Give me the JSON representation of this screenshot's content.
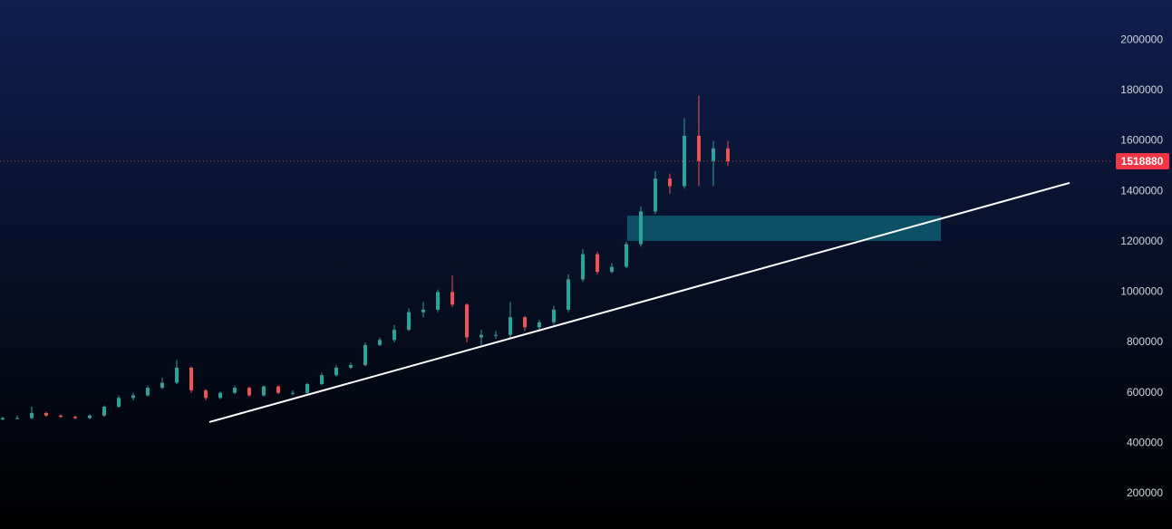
{
  "chart_data": {
    "type": "candlestick",
    "up_color": "#26a69a",
    "down_color": "#ef5350",
    "open": [
      495000,
      500000,
      500000,
      520000,
      510000,
      505000,
      500000,
      510000,
      545000,
      580000,
      590000,
      620000,
      640000,
      700000,
      610000,
      580000,
      600000,
      620000,
      590000,
      625000,
      600000,
      600000,
      635000,
      670000,
      700000,
      710000,
      790000,
      810000,
      850000,
      920000,
      930000,
      1000000,
      950000,
      820000,
      830000,
      830000,
      900000,
      860000,
      880000,
      930000,
      1050000,
      1150000,
      1080000,
      1100000,
      1190000,
      1320000,
      1450000,
      1420000,
      1620000,
      1520000,
      1570000
    ],
    "high": [
      505000,
      510000,
      545000,
      525000,
      515000,
      510000,
      515000,
      550000,
      590000,
      600000,
      630000,
      660000,
      730000,
      705000,
      615000,
      605000,
      630000,
      625000,
      630000,
      630000,
      610000,
      640000,
      680000,
      710000,
      720000,
      800000,
      820000,
      870000,
      935000,
      960000,
      1010000,
      1065000,
      955000,
      850000,
      845000,
      960000,
      905000,
      890000,
      945000,
      1070000,
      1170000,
      1160000,
      1115000,
      1200000,
      1340000,
      1480000,
      1470000,
      1690000,
      1780000,
      1600000,
      1600000
    ],
    "low": [
      490000,
      495000,
      495000,
      505000,
      500000,
      495000,
      495000,
      505000,
      540000,
      570000,
      585000,
      615000,
      635000,
      600000,
      570000,
      575000,
      595000,
      585000,
      585000,
      595000,
      590000,
      595000,
      630000,
      665000,
      695000,
      705000,
      785000,
      800000,
      845000,
      900000,
      920000,
      940000,
      800000,
      790000,
      815000,
      820000,
      845000,
      850000,
      870000,
      920000,
      1040000,
      1070000,
      1075000,
      1095000,
      1180000,
      1310000,
      1390000,
      1410000,
      1420000,
      1420000,
      1500000
    ],
    "close": [
      500000,
      500000,
      520000,
      510000,
      505000,
      500000,
      510000,
      545000,
      580000,
      590000,
      620000,
      640000,
      700000,
      610000,
      580000,
      600000,
      620000,
      590000,
      625000,
      600000,
      600000,
      635000,
      670000,
      700000,
      710000,
      790000,
      810000,
      850000,
      920000,
      930000,
      1000000,
      950000,
      820000,
      830000,
      830000,
      900000,
      860000,
      880000,
      930000,
      1050000,
      1150000,
      1080000,
      1100000,
      1190000,
      1320000,
      1450000,
      1420000,
      1620000,
      1520000,
      1570000,
      1518880
    ],
    "ylim": [
      59800,
      2158700
    ],
    "yticks": [
      200000,
      400000,
      600000,
      800000,
      1000000,
      1200000,
      1400000,
      1600000,
      1800000,
      2000000
    ],
    "last_price": 1518880,
    "last_price_color": "#f23645",
    "trendline": {
      "start": 484000,
      "end": 1433000,
      "color": "#ffffff"
    },
    "zone": {
      "top": 1303000,
      "bottom": 1203000,
      "color": "#0e5a6e"
    }
  }
}
